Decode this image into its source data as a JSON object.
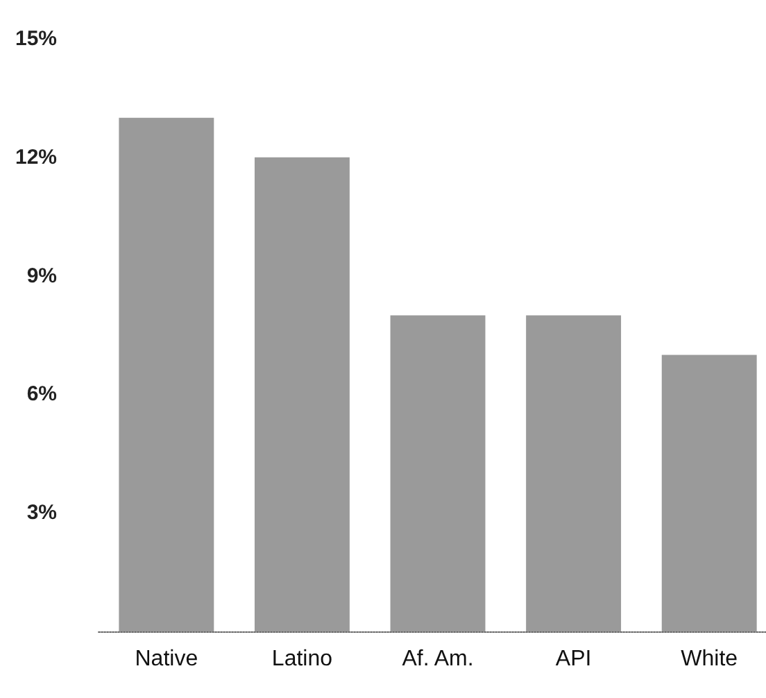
{
  "chart_data": {
    "type": "bar",
    "categories": [
      "Native",
      "Latino",
      "Af. Am.",
      "API",
      "White"
    ],
    "values": [
      13,
      12,
      8,
      8,
      7
    ],
    "color": "#9a9a9a",
    "ylim": [
      0,
      15
    ],
    "yticks": [
      {
        "value": 3,
        "label": "3%"
      },
      {
        "value": 6,
        "label": "6%"
      },
      {
        "value": 9,
        "label": "9%"
      },
      {
        "value": 12,
        "label": "12%"
      },
      {
        "value": 15,
        "label": "15%"
      }
    ],
    "grid": false
  }
}
